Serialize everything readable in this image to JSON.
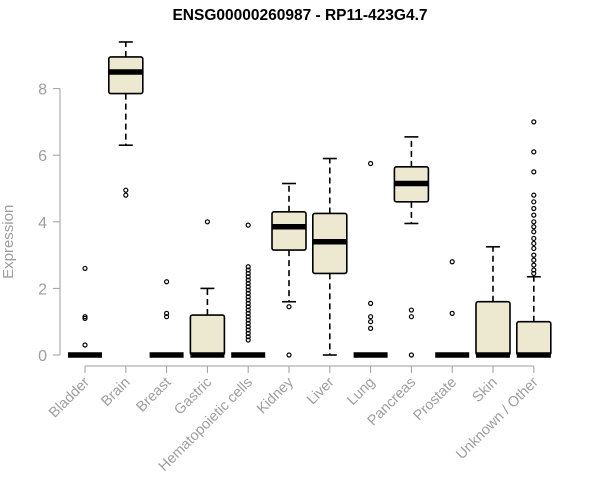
{
  "chart_data": {
    "type": "boxplot",
    "title": "ENSG00000260987 - RP11-423G4.7",
    "xlabel": "",
    "ylabel": "Expression",
    "ylim": [
      0,
      9
    ],
    "yticks": [
      0,
      2,
      4,
      6,
      8
    ],
    "grid": false,
    "colors": {
      "box_fill": "#ede8d0",
      "box_stroke": "#000000",
      "axis": "#9e9e9e",
      "tick_label": "#9e9e9e",
      "title": "#000000"
    },
    "categories": [
      "Bladder",
      "Brain",
      "Breast",
      "Gastric",
      "Hematopoietic cells",
      "Kidney",
      "Liver",
      "Lung",
      "Pancreas",
      "Prostate",
      "Skin",
      "Unknown / Other"
    ],
    "boxes": [
      {
        "name": "Bladder",
        "min": 0,
        "q1": 0,
        "median": 0,
        "q3": 0,
        "max": 0,
        "outliers": [
          0.3,
          1.1,
          1.15,
          2.6
        ]
      },
      {
        "name": "Brain",
        "min": 6.3,
        "q1": 7.85,
        "median": 8.5,
        "q3": 8.95,
        "max": 9.4,
        "outliers": [
          4.8,
          4.95
        ]
      },
      {
        "name": "Breast",
        "min": 0,
        "q1": 0,
        "median": 0,
        "q3": 0,
        "max": 0,
        "outliers": [
          1.15,
          1.25,
          2.2
        ]
      },
      {
        "name": "Gastric",
        "min": 0,
        "q1": 0,
        "median": 0,
        "q3": 1.2,
        "max": 2.0,
        "outliers": [
          4.0
        ]
      },
      {
        "name": "Hematopoietic cells",
        "min": 0,
        "q1": 0,
        "median": 0,
        "q3": 0,
        "max": 0,
        "outliers": [
          0.45,
          0.55,
          0.65,
          0.75,
          0.85,
          0.95,
          1.05,
          1.15,
          1.25,
          1.35,
          1.45,
          1.55,
          1.65,
          1.75,
          1.85,
          1.95,
          2.05,
          2.15,
          2.25,
          2.35,
          2.45,
          2.55,
          2.65,
          3.9
        ]
      },
      {
        "name": "Kidney",
        "min": 1.6,
        "q1": 3.15,
        "median": 3.85,
        "q3": 4.3,
        "max": 5.15,
        "outliers": [
          0,
          1.45
        ]
      },
      {
        "name": "Liver",
        "min": 0,
        "q1": 2.45,
        "median": 3.4,
        "q3": 4.25,
        "max": 5.9,
        "outliers": []
      },
      {
        "name": "Lung",
        "min": 0,
        "q1": 0,
        "median": 0,
        "q3": 0,
        "max": 0,
        "outliers": [
          0.8,
          1.0,
          1.15,
          1.55,
          5.75
        ]
      },
      {
        "name": "Pancreas",
        "min": 3.95,
        "q1": 4.6,
        "median": 5.15,
        "q3": 5.65,
        "max": 6.55,
        "outliers": [
          0,
          1.15,
          1.35
        ]
      },
      {
        "name": "Prostate",
        "min": 0,
        "q1": 0,
        "median": 0,
        "q3": 0,
        "max": 0,
        "outliers": [
          1.25,
          2.8
        ]
      },
      {
        "name": "Skin",
        "min": 0,
        "q1": 0,
        "median": 0,
        "q3": 1.6,
        "max": 3.25,
        "outliers": []
      },
      {
        "name": "Unknown / Other",
        "min": 0,
        "q1": 0,
        "median": 0,
        "q3": 1.0,
        "max": 2.35,
        "outliers": [
          2.45,
          2.55,
          2.7,
          2.85,
          3.0,
          3.2,
          3.35,
          3.5,
          3.7,
          3.85,
          4.0,
          4.2,
          4.4,
          4.6,
          4.8,
          5.5,
          6.1,
          7.0
        ]
      }
    ]
  }
}
